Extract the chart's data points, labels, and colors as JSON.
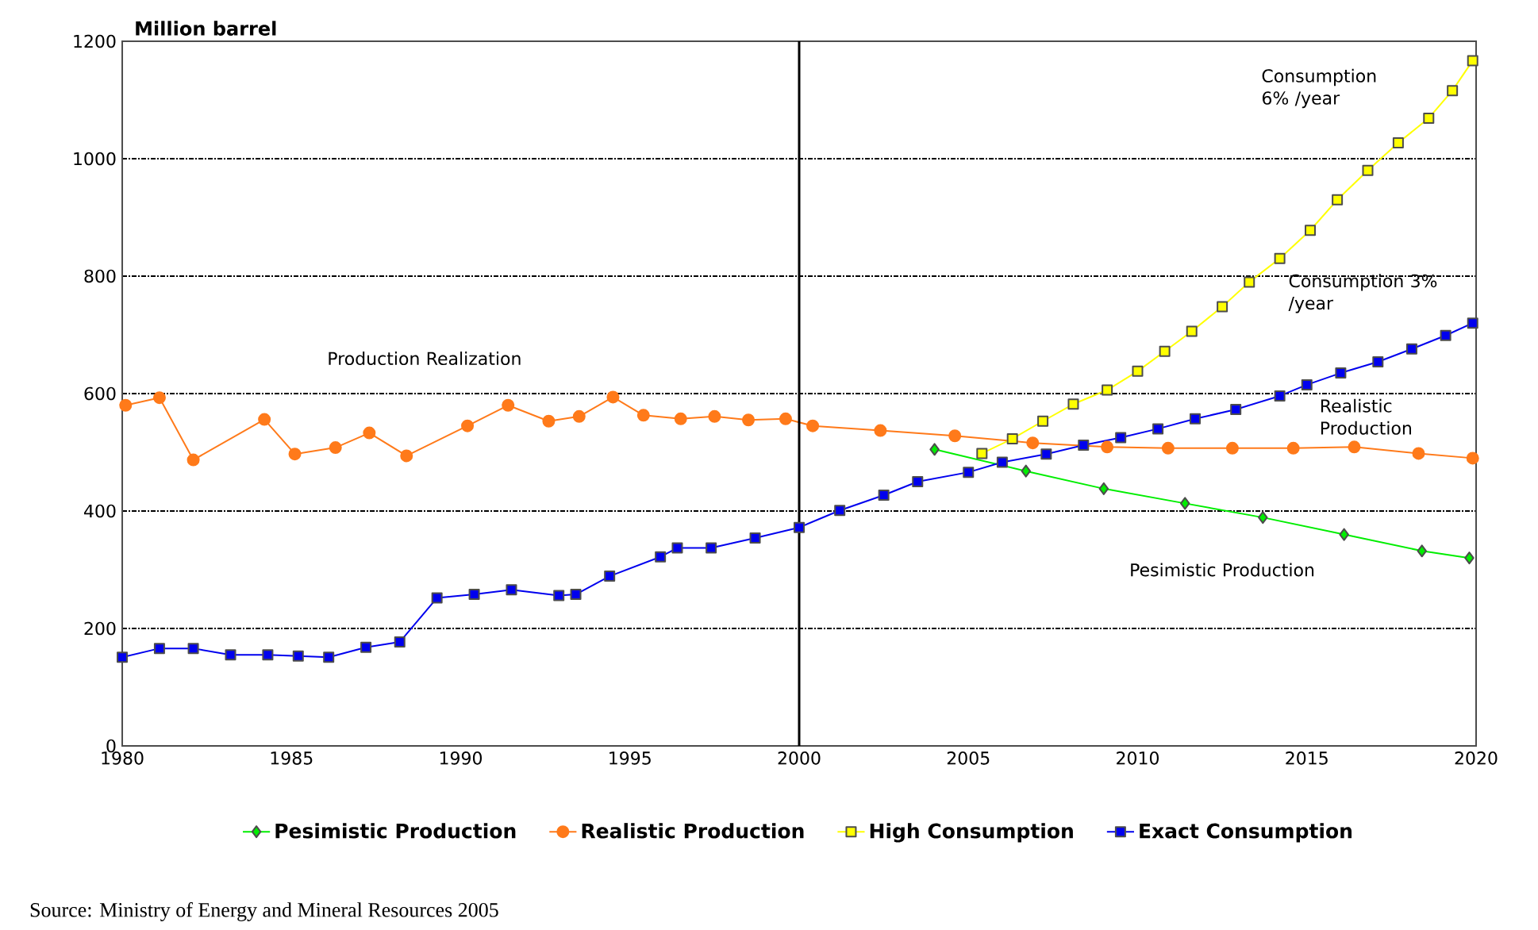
{
  "chart_data": {
    "type": "line",
    "ylabel": "Million barrel",
    "xlim": [
      1980,
      2020
    ],
    "xticks": [
      1980,
      1985,
      1990,
      1995,
      2000,
      2005,
      2010,
      2015,
      2020
    ],
    "ylim": [
      0,
      1200
    ],
    "yticks": [
      0,
      200,
      400,
      600,
      800,
      1000,
      1200
    ],
    "grid": "y",
    "legend": "bottom",
    "series": [
      {
        "name": "Pesimistic Production",
        "color": "#00ee00",
        "marker": "diamond",
        "x": [
          2004.0,
          2006.7,
          2009.0,
          2011.4,
          2013.7,
          2016.1,
          2018.4,
          2019.8
        ],
        "values": [
          505,
          468,
          438,
          413,
          389,
          360,
          332,
          320
        ]
      },
      {
        "name": "Realistic Production",
        "color": "#ff7a1a",
        "marker": "circle",
        "x": [
          1980.1,
          1981.1,
          1982.1,
          1984.2,
          1985.1,
          1986.3,
          1987.3,
          1988.4,
          1990.2,
          1991.4,
          1992.6,
          1993.5,
          1994.5,
          1995.4,
          1996.5,
          1997.5,
          1998.5,
          1999.6,
          2000.4,
          2002.4,
          2004.6,
          2006.9,
          2009.1,
          2010.9,
          2012.8,
          2014.6,
          2016.4,
          2018.3,
          2019.9
        ],
        "values": [
          580,
          593,
          487,
          556,
          497,
          508,
          533,
          494,
          545,
          580,
          553,
          561,
          594,
          563,
          557,
          561,
          555,
          557,
          545,
          537,
          528,
          516,
          509,
          507,
          507,
          507,
          509,
          498,
          490
        ]
      },
      {
        "name": "High Consumption",
        "color": "#ffff00",
        "marker": "square",
        "x": [
          2005.4,
          2006.3,
          2007.2,
          2008.1,
          2009.1,
          2010.0,
          2010.8,
          2011.6,
          2012.5,
          2013.3,
          2014.2,
          2015.1,
          2015.9,
          2016.8,
          2017.7,
          2018.6,
          2019.3,
          2019.9
        ],
        "values": [
          498,
          523,
          553,
          582,
          606,
          638,
          672,
          706,
          748,
          790,
          830,
          878,
          930,
          980,
          1027,
          1069,
          1116,
          1167
        ]
      },
      {
        "name": "Exact Consumption",
        "color": "#0000ee",
        "marker": "square",
        "x": [
          1980.0,
          1981.1,
          1982.1,
          1983.2,
          1984.3,
          1985.2,
          1986.1,
          1987.2,
          1988.2,
          1989.3,
          1990.4,
          1991.5,
          1992.9,
          1993.4,
          1994.4,
          1995.9,
          1996.4,
          1997.4,
          1998.7,
          2000.0,
          2001.2,
          2002.5,
          2003.5,
          2005.0,
          2006.0,
          2007.3,
          2008.4,
          2009.5,
          2010.6,
          2011.7,
          2012.9,
          2014.2,
          2015.0,
          2016.0,
          2017.1,
          2018.1,
          2019.1,
          2019.9
        ],
        "values": [
          151,
          166,
          166,
          155,
          155,
          153,
          151,
          168,
          177,
          252,
          258,
          266,
          256,
          258,
          289,
          322,
          337,
          337,
          354,
          372,
          401,
          427,
          450,
          466,
          483,
          497,
          512,
          525,
          540,
          557,
          573,
          596,
          615,
          635,
          654,
          676,
          699,
          720
        ]
      }
    ],
    "ref_lines": [
      {
        "axis": "x",
        "value": 2000,
        "color": "#000000",
        "line_style": "solid"
      }
    ],
    "annotations": [
      "Production Realization",
      "Consumption 6% /year",
      "Consumption 3% /year",
      "Realistic Production",
      "Pesimistic Production",
      "Source: Ministry of Energy and Mineral Resources 2005"
    ]
  }
}
